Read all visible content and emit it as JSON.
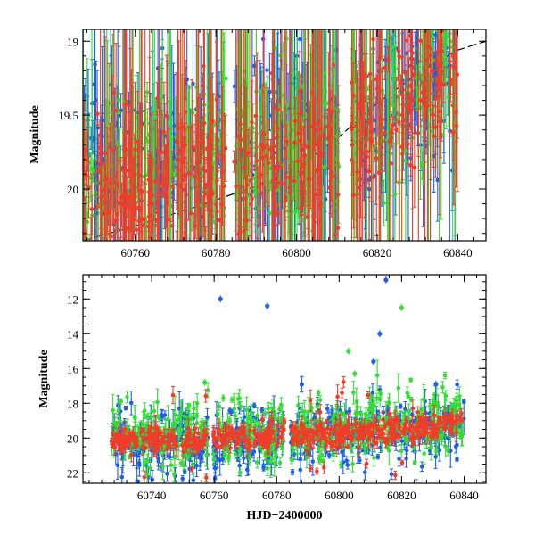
{
  "chart_data": [
    {
      "type": "scatter",
      "panel": "top",
      "ylabel": "Magnitude",
      "xlabel": "",
      "xlim": [
        60747,
        60847
      ],
      "ylim": [
        20.35,
        18.92
      ],
      "y_inverted": true,
      "x_ticks": [
        60760,
        60780,
        60800,
        60820,
        60840
      ],
      "x_tick_labels": [
        "60760",
        "60780",
        "60800",
        "60820",
        "60840"
      ],
      "y_ticks": [
        19,
        19.5,
        20
      ],
      "y_tick_labels": [
        "19",
        "19.5",
        "20"
      ],
      "grid": false,
      "colors": {
        "blue": "#1f5fe0",
        "green": "#33dd33",
        "red": "#f03c28",
        "curve": "#000000"
      },
      "model_curve": {
        "style": "dashed",
        "x": [
          60747,
          60760,
          60775,
          60790,
          60800,
          60810,
          60820,
          60830,
          60840,
          60847
        ],
        "y": [
          20.35,
          20.25,
          20.12,
          19.98,
          19.86,
          19.66,
          19.42,
          19.22,
          19.06,
          19.0
        ]
      },
      "series": [
        {
          "color": "blue",
          "x": [
            60747,
            60753,
            60760,
            60768,
            60775,
            60782,
            60790,
            60797,
            60805,
            60812,
            60818,
            60825,
            60831,
            60836,
            60840
          ],
          "y": [
            19.55,
            19.9,
            19.85,
            19.7,
            19.75,
            19.8,
            19.75,
            19.7,
            19.6,
            19.55,
            19.5,
            19.35,
            19.3,
            19.2,
            19.2
          ]
        },
        {
          "color": "green",
          "x": [
            60747,
            60753,
            60760,
            60768,
            60775,
            60782,
            60790,
            60797,
            60805,
            60812,
            60818,
            60825,
            60831,
            60836,
            60840
          ],
          "y": [
            19.95,
            19.95,
            19.9,
            19.8,
            19.85,
            19.8,
            19.75,
            19.75,
            19.65,
            19.55,
            19.5,
            19.4,
            19.3,
            19.2,
            19.15
          ]
        },
        {
          "color": "red",
          "x": [
            60747,
            60753,
            60760,
            60768,
            60775,
            60782,
            60790,
            60797,
            60805,
            60812,
            60818,
            60825,
            60831,
            60836,
            60840
          ],
          "y": [
            20.0,
            20.0,
            19.95,
            19.95,
            19.95,
            19.95,
            19.9,
            19.85,
            19.8,
            19.65,
            19.55,
            19.4,
            19.3,
            19.2,
            19.2
          ]
        }
      ]
    },
    {
      "type": "scatter",
      "panel": "bottom",
      "ylabel": "Magnitude",
      "xlabel": "HJD−2400000",
      "xlim": [
        60718,
        60847
      ],
      "ylim": [
        22.6,
        10.6
      ],
      "y_inverted": true,
      "x_ticks": [
        60740,
        60760,
        60780,
        60800,
        60820,
        60840
      ],
      "x_tick_labels": [
        "60740",
        "60760",
        "60780",
        "60800",
        "60820",
        "60840"
      ],
      "y_ticks": [
        12,
        14,
        16,
        18,
        20,
        22
      ],
      "y_tick_labels": [
        "12",
        "14",
        "16",
        "18",
        "20",
        "22"
      ],
      "grid": false,
      "outliers": [
        {
          "color": "blue",
          "x": 60762,
          "y": 12.0
        },
        {
          "color": "blue",
          "x": 60777,
          "y": 12.4
        },
        {
          "color": "blue",
          "x": 60815,
          "y": 10.9
        },
        {
          "color": "blue",
          "x": 60813,
          "y": 14.0
        },
        {
          "color": "green",
          "x": 60820,
          "y": 12.5
        },
        {
          "color": "green",
          "x": 60803,
          "y": 15.0
        },
        {
          "color": "blue",
          "x": 60811,
          "y": 15.6
        },
        {
          "color": "green",
          "x": 60757,
          "y": 16.8
        },
        {
          "color": "green",
          "x": 60805,
          "y": 16.3
        },
        {
          "color": "blue",
          "x": 60831,
          "y": 16.9
        }
      ],
      "series": [
        {
          "color": "blue",
          "x": [
            60727,
            60735,
            60745,
            60755,
            60765,
            60775,
            60785,
            60795,
            60805,
            60815,
            60825,
            60835,
            60840
          ],
          "y": [
            20.1,
            20.0,
            20.2,
            20.3,
            20.1,
            20.0,
            20.0,
            19.9,
            19.8,
            19.7,
            19.6,
            19.2,
            19.1
          ]
        },
        {
          "color": "green",
          "x": [
            60727,
            60735,
            60745,
            60755,
            60765,
            60775,
            60785,
            60795,
            60805,
            60815,
            60825,
            60835,
            60840
          ],
          "y": [
            19.9,
            19.9,
            19.8,
            19.9,
            19.8,
            19.9,
            19.7,
            19.8,
            19.6,
            19.4,
            19.3,
            19.0,
            19.0
          ]
        },
        {
          "color": "red",
          "x": [
            60727,
            60735,
            60745,
            60755,
            60765,
            60775,
            60785,
            60795,
            60805,
            60815,
            60825,
            60835,
            60840
          ],
          "y": [
            20.2,
            20.1,
            20.0,
            20.1,
            20.0,
            20.0,
            19.9,
            19.9,
            19.8,
            19.6,
            19.5,
            19.2,
            19.1
          ]
        }
      ]
    }
  ]
}
